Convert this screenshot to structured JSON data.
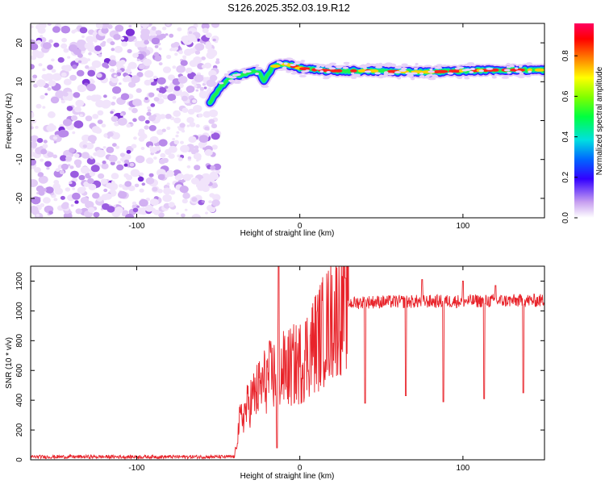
{
  "title": "S126.2025.352.03.19.R12",
  "chart_data": [
    {
      "type": "heatmap",
      "xlabel": "Height of straight line (km)",
      "ylabel": "Frequency (Hz)",
      "xlim": [
        -165,
        150
      ],
      "ylim": [
        -25,
        25
      ],
      "x_ticks": [
        -100,
        0,
        100
      ],
      "y_ticks": [
        -20,
        -10,
        0,
        10,
        20
      ],
      "noise_region_x": [
        -165,
        -50
      ],
      "ridge": {
        "x": [
          -55,
          -50,
          -45,
          -40,
          -35,
          -30,
          -25,
          -22,
          -20,
          -17,
          -13,
          -8,
          0,
          10,
          20,
          40,
          60,
          80,
          100,
          120,
          150
        ],
        "freq": [
          4.5,
          8.0,
          10.0,
          11.5,
          12.0,
          12.5,
          12.5,
          10.0,
          11.5,
          13.5,
          14.5,
          14.5,
          13.5,
          13.0,
          12.8,
          12.8,
          12.6,
          12.5,
          12.8,
          13.0,
          13.0
        ]
      },
      "colorbar": {
        "label": "Normalized spectral amplitude",
        "ticks": [
          "0.0",
          "0.2",
          "0.4",
          "0.6",
          "0.8"
        ],
        "range": [
          0,
          0.96
        ]
      }
    },
    {
      "type": "line",
      "xlabel": "Height of straight line (km)",
      "ylabel": "SNR (10 * v/v)",
      "xlim": [
        -165,
        150
      ],
      "ylim": [
        0,
        1300
      ],
      "x_ticks": [
        -100,
        0,
        100
      ],
      "y_ticks": [
        0,
        200,
        400,
        600,
        800,
        1000,
        1200
      ],
      "series": [
        {
          "color": "#e8232a",
          "envelope_x": [
            -165,
            -40,
            -37,
            -30,
            -20,
            -10,
            0,
            10,
            20,
            28,
            40,
            150
          ],
          "envelope_snr": [
            20,
            20,
            250,
            400,
            550,
            600,
            650,
            800,
            950,
            1050,
            1060,
            1070
          ],
          "dips_x": [
            -14,
            40,
            65,
            88,
            113,
            137
          ],
          "dips_snr": [
            80,
            380,
            430,
            390,
            410,
            450
          ],
          "spikes_x": [
            -13,
            28,
            75,
            100,
            120
          ],
          "spikes_snr": [
            1300,
            1220,
            1210,
            1200,
            1170
          ]
        }
      ]
    }
  ]
}
